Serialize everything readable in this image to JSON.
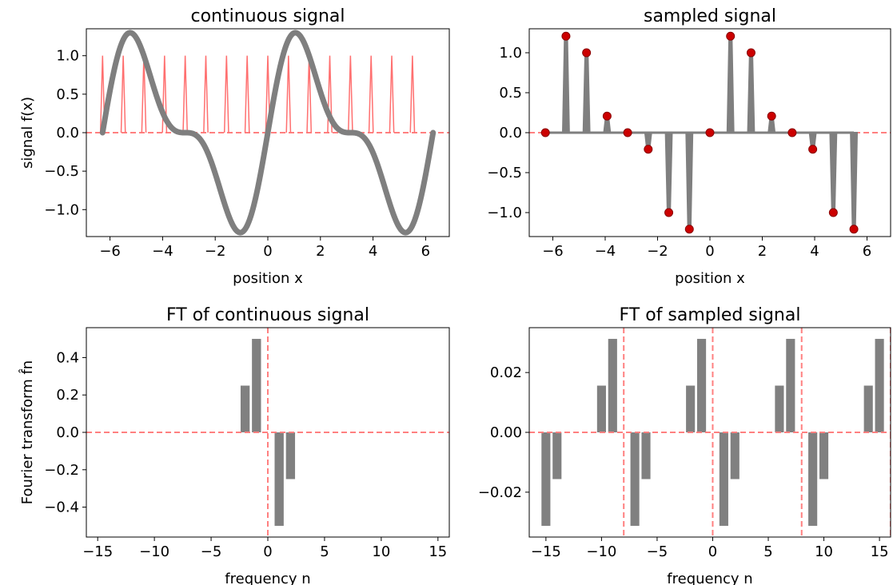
{
  "chart_data": [
    {
      "panel": "continuous-signal",
      "type": "line",
      "title": "continuous signal",
      "xlabel": "position x",
      "ylabel": "signal f(x)",
      "xlim": [
        -6.9,
        6.9
      ],
      "ylim": [
        -1.35,
        1.35
      ],
      "xticks": [
        -6,
        -4,
        -2,
        0,
        2,
        4,
        6
      ],
      "xtick_labels": [
        "−6",
        "−4",
        "−2",
        "0",
        "2",
        "4",
        "6"
      ],
      "yticks": [
        -1.0,
        -0.5,
        0.0,
        0.5,
        1.0
      ],
      "ytick_labels": [
        "−1.0",
        "−0.5",
        "0.0",
        "0.5",
        "1.0"
      ],
      "x_range": [
        -6.2832,
        6.2832
      ],
      "signal": "f(x) = sin(x) + sin(2x)/2",
      "series": [
        {
          "name": "",
          "color": "#808080",
          "style": "thick-solid"
        },
        {
          "name": "",
          "color": "#ff6060",
          "style": "sampling-comb",
          "x": [
            -6.2832,
            -5.4978,
            -4.7124,
            -3.927,
            -3.1416,
            -2.3562,
            -1.5708,
            -0.7854,
            0.0,
            0.7854,
            1.5708,
            2.3562,
            3.1416,
            3.927,
            4.7124,
            5.4978
          ],
          "height": 1.0
        }
      ],
      "hlines": [
        0.0
      ],
      "grid": false
    },
    {
      "panel": "sampled-signal",
      "type": "stem",
      "title": "sampled signal",
      "xlabel": "position x",
      "ylabel": "",
      "xlim": [
        -6.9,
        6.9
      ],
      "ylim": [
        -1.3,
        1.3
      ],
      "xticks": [
        -6,
        -4,
        -2,
        0,
        2,
        4,
        6
      ],
      "xtick_labels": [
        "−6",
        "−4",
        "−2",
        "0",
        "2",
        "4",
        "6"
      ],
      "yticks": [
        -1.0,
        -0.5,
        0.0,
        0.5,
        1.0
      ],
      "ytick_labels": [
        "−1.0",
        "−0.5",
        "0.0",
        "0.5",
        "1.0"
      ],
      "x": [
        -6.2832,
        -5.4978,
        -4.7124,
        -3.927,
        -3.1416,
        -2.3562,
        -1.5708,
        -0.7854,
        0.0,
        0.7854,
        1.5708,
        2.3562,
        3.1416,
        3.927,
        4.7124,
        5.4978
      ],
      "y": [
        0.0,
        1.2071,
        1.0,
        0.2071,
        0.0,
        -0.2071,
        -1.0,
        -1.2071,
        0.0,
        1.2071,
        1.0,
        0.2071,
        0.0,
        -0.2071,
        -1.0,
        -1.2071
      ],
      "stem_color": "#808080",
      "marker_color": "#cc0000",
      "hlines": [
        0.0
      ],
      "grid": false
    },
    {
      "panel": "ft-continuous",
      "type": "bar",
      "title": "FT of continuous signal",
      "xlabel": "frequency n",
      "ylabel": "Fourier transform f̂n",
      "xlim": [
        -16,
        16
      ],
      "ylim": [
        -0.56,
        0.56
      ],
      "xticks": [
        -15,
        -10,
        -5,
        0,
        5,
        10,
        15
      ],
      "xtick_labels": [
        "−15",
        "−10",
        "−5",
        "0",
        "5",
        "10",
        "15"
      ],
      "yticks": [
        -0.4,
        -0.2,
        0.0,
        0.2,
        0.4
      ],
      "ytick_labels": [
        "−0.4",
        "−0.2",
        "0.0",
        "0.2",
        "0.4"
      ],
      "x": [
        -2,
        -1,
        1,
        2
      ],
      "values": [
        0.25,
        0.5,
        -0.5,
        -0.25
      ],
      "bar_width": 0.8,
      "color": "#808080",
      "vlines": [
        0
      ],
      "hlines": [
        0.0
      ],
      "grid": false
    },
    {
      "panel": "ft-sampled",
      "type": "bar",
      "title": "FT of sampled signal",
      "xlabel": "frequency n",
      "ylabel": "",
      "xlim": [
        -16.5,
        16.0
      ],
      "ylim": [
        -0.035,
        0.035
      ],
      "xticks": [
        -15,
        -10,
        -5,
        0,
        5,
        10,
        15
      ],
      "xtick_labels": [
        "−15",
        "−10",
        "−5",
        "0",
        "5",
        "10",
        "15"
      ],
      "yticks": [
        -0.02,
        0.0,
        0.02
      ],
      "ytick_labels": [
        "−0.02",
        "0.00",
        "0.02"
      ],
      "x": [
        -15,
        -14,
        -10,
        -9,
        -7,
        -6,
        -2,
        -1,
        1,
        2,
        6,
        7,
        9,
        10,
        14,
        15
      ],
      "values": [
        -0.03125,
        -0.015625,
        0.015625,
        0.03125,
        -0.03125,
        -0.015625,
        0.015625,
        0.03125,
        -0.03125,
        -0.015625,
        0.015625,
        0.03125,
        -0.03125,
        -0.015625,
        0.015625,
        0.03125
      ],
      "bar_width": 0.8,
      "color": "#808080",
      "vlines": [
        -8,
        0,
        8,
        16
      ],
      "hlines": [
        0.0
      ],
      "grid": false
    }
  ]
}
